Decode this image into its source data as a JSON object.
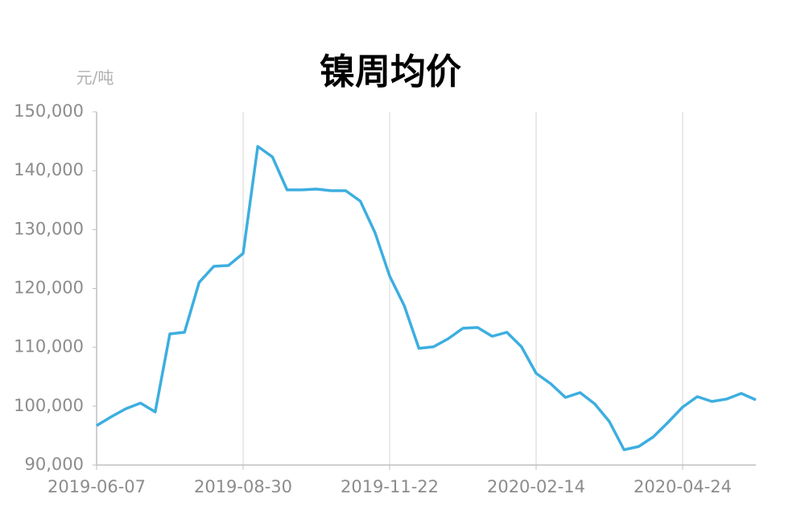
{
  "chart_data": {
    "type": "line",
    "title": "镍周均价",
    "y_unit": "元/吨",
    "categories": [
      "2019-06-07",
      null,
      null,
      null,
      null,
      null,
      null,
      null,
      null,
      null,
      "2019-08-30",
      null,
      null,
      null,
      null,
      null,
      null,
      null,
      null,
      null,
      "2019-11-22",
      null,
      null,
      null,
      null,
      null,
      null,
      null,
      null,
      null,
      "2020-02-14",
      null,
      null,
      null,
      null,
      null,
      null,
      null,
      null,
      null,
      "2020-04-24",
      null,
      null,
      null,
      null,
      null
    ],
    "series": [
      {
        "name": "镍周均价",
        "color": "#3daee0",
        "values": [
          96700,
          98200,
          99570,
          100520,
          99020,
          112280,
          112550,
          121020,
          123760,
          123890,
          125940,
          144120,
          142340,
          136740,
          136740,
          136880,
          136600,
          136600,
          134830,
          129500,
          122120,
          117060,
          109820,
          110090,
          111460,
          113230,
          113370,
          111870,
          112550,
          110090,
          105580,
          103800,
          101480,
          102300,
          100390,
          97380,
          92600,
          93140,
          94780,
          97240,
          99840,
          101620,
          100800,
          101210,
          102170,
          101070
        ]
      }
    ],
    "ylim": [
      90000,
      150000
    ],
    "yticks": [
      {
        "value": 90000,
        "label": "90,000"
      },
      {
        "value": 100000,
        "label": "100,000"
      },
      {
        "value": 110000,
        "label": "110,000"
      },
      {
        "value": 120000,
        "label": "120,000"
      },
      {
        "value": 130000,
        "label": "130,000"
      },
      {
        "value": 140000,
        "label": "140,000"
      },
      {
        "value": 150000,
        "label": "150,000"
      }
    ],
    "grid": "x"
  }
}
